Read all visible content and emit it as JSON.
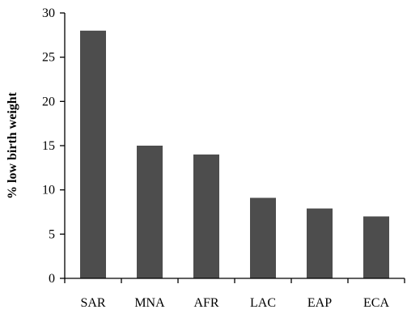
{
  "chart_data": {
    "type": "bar",
    "categories": [
      "SAR",
      "MNA",
      "AFR",
      "LAC",
      "EAP",
      "ECA"
    ],
    "values": [
      28,
      15,
      14,
      9.1,
      7.9,
      7
    ],
    "ylabel": "% low birth weight",
    "xlabel": "",
    "ylim": [
      0,
      30
    ],
    "yticks": [
      0,
      5,
      10,
      15,
      20,
      25,
      30
    ],
    "grid": false,
    "bar_color": "#4d4d4d"
  }
}
